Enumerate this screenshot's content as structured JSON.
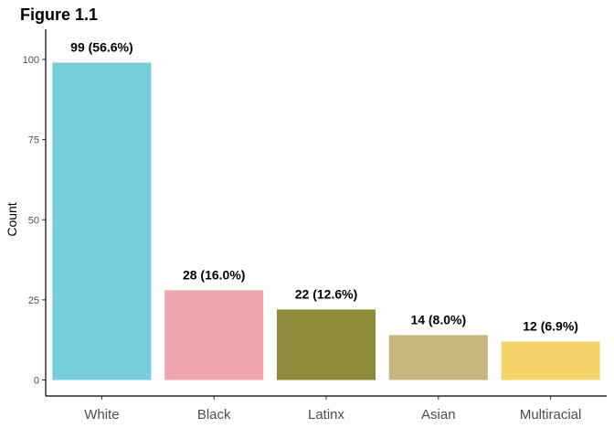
{
  "chart_data": {
    "type": "bar",
    "title": "Figure 1.1",
    "xlabel": "",
    "ylabel": "Count",
    "ylim": [
      0,
      109
    ],
    "yticks": [
      0,
      25,
      50,
      75,
      100
    ],
    "categories": [
      "White",
      "Black",
      "Latinx",
      "Asian",
      "Multiracial"
    ],
    "values": [
      99,
      28,
      22,
      14,
      12
    ],
    "data_labels": [
      "99 (56.6%)",
      "28 (16.0%)",
      "22 (12.6%)",
      "14 (8.0%)",
      "12 (6.9%)"
    ],
    "colors": [
      "#78CDDD",
      "#F0A6B1",
      "#8B8B3A",
      "#C5B67D",
      "#F6D26A"
    ],
    "grid": false,
    "legend": "none"
  }
}
